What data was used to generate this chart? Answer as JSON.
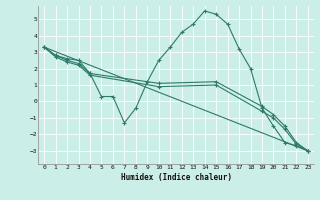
{
  "xlabel": "Humidex (Indice chaleur)",
  "background_color": "#cceee8",
  "grid_color": "#ffffff",
  "line_color": "#2d7a6a",
  "xlim": [
    -0.5,
    23.5
  ],
  "ylim": [
    -3.8,
    5.8
  ],
  "xticks": [
    0,
    1,
    2,
    3,
    4,
    5,
    6,
    7,
    8,
    9,
    10,
    11,
    12,
    13,
    14,
    15,
    16,
    17,
    18,
    19,
    20,
    21,
    22,
    23
  ],
  "yticks": [
    -3,
    -2,
    -1,
    0,
    1,
    2,
    3,
    4,
    5
  ],
  "line1_x": [
    0,
    1,
    2,
    3,
    4,
    5,
    6,
    7,
    8,
    9,
    10,
    11,
    12,
    13,
    14,
    15,
    16,
    17,
    18,
    19,
    20,
    21,
    22,
    23
  ],
  "line1_y": [
    3.3,
    2.8,
    2.6,
    2.5,
    1.7,
    0.3,
    0.3,
    -1.3,
    -0.4,
    1.2,
    2.5,
    3.3,
    4.2,
    4.7,
    5.5,
    5.3,
    4.7,
    3.2,
    2.0,
    -0.4,
    -1.5,
    -2.5,
    -2.7,
    -3.0
  ],
  "line2_x": [
    0,
    23
  ],
  "line2_y": [
    3.3,
    -3.0
  ],
  "line3_x": [
    0,
    1,
    2,
    3,
    4,
    10,
    15,
    19,
    20,
    21,
    22,
    23
  ],
  "line3_y": [
    3.3,
    2.8,
    2.5,
    2.3,
    1.7,
    1.1,
    1.2,
    -0.3,
    -0.8,
    -1.5,
    -2.5,
    -3.0
  ],
  "line4_x": [
    0,
    1,
    2,
    3,
    4,
    10,
    15,
    19,
    20,
    21,
    22,
    23
  ],
  "line4_y": [
    3.3,
    2.7,
    2.4,
    2.2,
    1.6,
    0.9,
    1.0,
    -0.6,
    -1.0,
    -1.7,
    -2.6,
    -3.0
  ]
}
